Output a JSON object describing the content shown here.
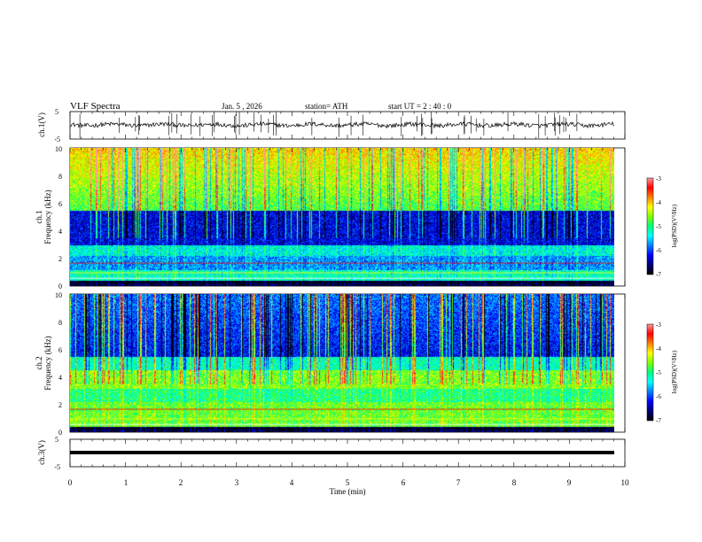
{
  "header": {
    "title": "VLF Spectra",
    "date": "Jan. 5 , 2026",
    "station": "station= ATH",
    "start": "start UT = 2 : 40 : 0"
  },
  "chart_data": {
    "type": "heatmap",
    "x": {
      "label": "Time (min)",
      "range": [
        0,
        10
      ],
      "ticks": [
        "0",
        "1",
        "2",
        "3",
        "4",
        "5",
        "6",
        "7",
        "8",
        "9",
        "10"
      ]
    },
    "panels": [
      {
        "id": "ch1-waveform",
        "type": "line",
        "ylabel": "ch.1(V)",
        "ylim": [
          -5,
          5
        ],
        "yticks": [
          "5",
          "-5"
        ]
      },
      {
        "id": "ch1-spectrogram",
        "type": "heatmap",
        "ylabel_top": "ch.1",
        "ylabel": "Frequency (kHz)",
        "ylim": [
          0,
          10
        ],
        "yticks": [
          "0",
          "2",
          "4",
          "6",
          "8",
          "10"
        ],
        "colorbar": {
          "label": "log(PSD)(V²/Hz)",
          "range": [
            -7,
            -3
          ],
          "ticks": [
            "-3",
            "-4",
            "-5",
            "-6",
            "-7"
          ]
        }
      },
      {
        "id": "ch2-spectrogram",
        "type": "heatmap",
        "ylabel_top": "ch.2",
        "ylabel": "Frequency (kHz)",
        "ylim": [
          0,
          10
        ],
        "yticks": [
          "0",
          "2",
          "4",
          "6",
          "8",
          "10"
        ],
        "colorbar": {
          "label": "log(PSD)(V²/Hz)",
          "range": [
            -7,
            -3
          ],
          "ticks": [
            "-3",
            "-4",
            "-5",
            "-6",
            "-7"
          ]
        }
      },
      {
        "id": "ch3-waveform",
        "type": "line",
        "ylabel": "ch.3(V)",
        "ylim": [
          -5,
          5
        ],
        "yticks": [
          "5",
          "-5"
        ]
      }
    ],
    "colors": {
      "colormap": [
        "#000000",
        "#00007a",
        "#0000ff",
        "#0080ff",
        "#00ffff",
        "#00ff80",
        "#80ff00",
        "#ffff00",
        "#ff8000",
        "#ff0000",
        "#ff9999"
      ]
    }
  }
}
